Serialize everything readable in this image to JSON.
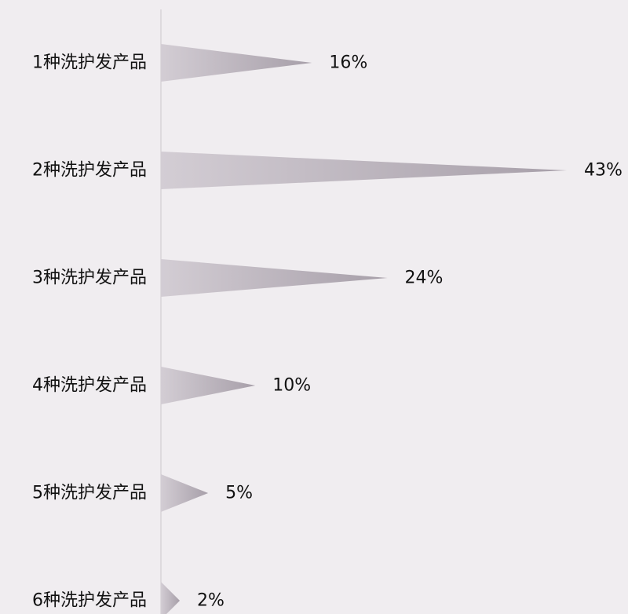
{
  "chart_data": {
    "type": "bar",
    "orientation": "horizontal",
    "categories": [
      "1种洗护发产品",
      "2种洗护发产品",
      "3种洗护发产品",
      "4种洗护发产品",
      "5种洗护发产品",
      "6种洗护发产品"
    ],
    "values": [
      16,
      43,
      24,
      10,
      5,
      2
    ],
    "value_labels": [
      "16%",
      "43%",
      "24%",
      "10%",
      "5%",
      "2%"
    ],
    "unit": "%",
    "xlim": [
      0,
      43
    ],
    "bar_shape": "triangle",
    "grid": false,
    "legend": "none"
  },
  "colors": {
    "background": "#f0edf0",
    "axis": "#d8d4d8",
    "bar_light": "#d3cdd4",
    "bar_dark": "#a79fa9",
    "text": "#111111"
  }
}
